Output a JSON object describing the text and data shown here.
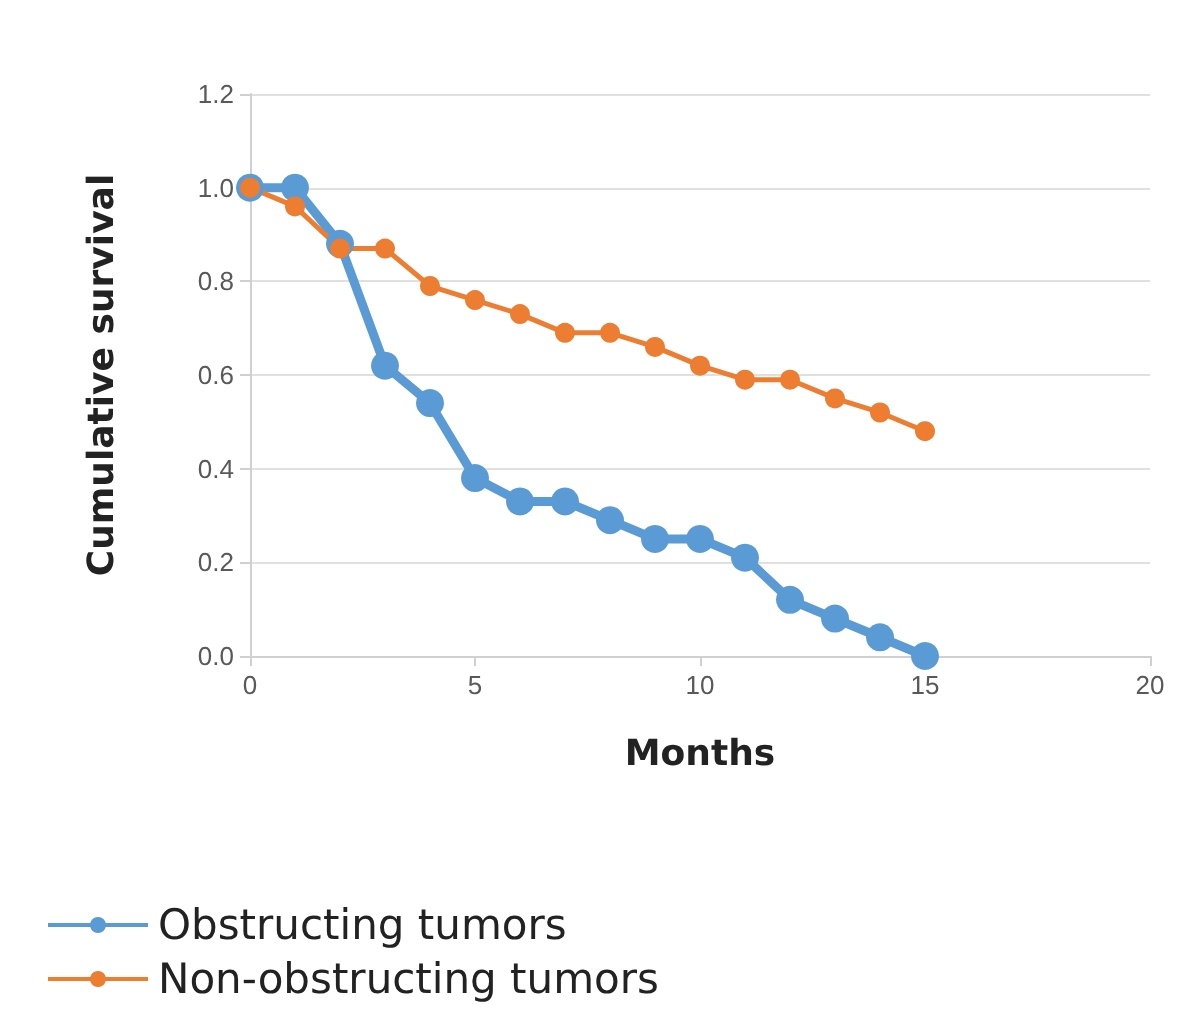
{
  "chart_data": {
    "type": "line",
    "xlabel": "Months",
    "ylabel": "Cumulative survival",
    "x": [
      0,
      1,
      2,
      3,
      4,
      5,
      6,
      7,
      8,
      9,
      10,
      11,
      12,
      13,
      14,
      15
    ],
    "series": [
      {
        "name": "Obstructing tumors",
        "color": "#5b9bd5",
        "values": [
          1.0,
          1.0,
          0.88,
          0.62,
          0.54,
          0.38,
          0.33,
          0.33,
          0.29,
          0.25,
          0.25,
          0.21,
          0.12,
          0.08,
          0.04,
          0.0
        ]
      },
      {
        "name": "Non-obstructing tumors",
        "color": "#ed7d31",
        "values": [
          1.0,
          0.96,
          0.87,
          0.87,
          0.79,
          0.76,
          0.73,
          0.69,
          0.69,
          0.66,
          0.62,
          0.59,
          0.59,
          0.55,
          0.52,
          0.48
        ]
      }
    ],
    "xlim": [
      0,
      20
    ],
    "xticks": [
      0,
      5,
      10,
      15,
      20
    ],
    "ylim": [
      0,
      1.2
    ],
    "yticks": [
      {
        "value": 0,
        "label": "0.0"
      },
      {
        "value": 0.2,
        "label": "0.2"
      },
      {
        "value": 0.4,
        "label": "0.4"
      },
      {
        "value": 0.6,
        "label": "0.6"
      },
      {
        "value": 0.8,
        "label": "0.8"
      },
      {
        "value": 1.0,
        "label": "1.0"
      },
      {
        "value": 1.2,
        "label": "1.2"
      }
    ],
    "grid": "y",
    "legend": "bottom left",
    "marker": "circle",
    "line_style": "solid"
  }
}
